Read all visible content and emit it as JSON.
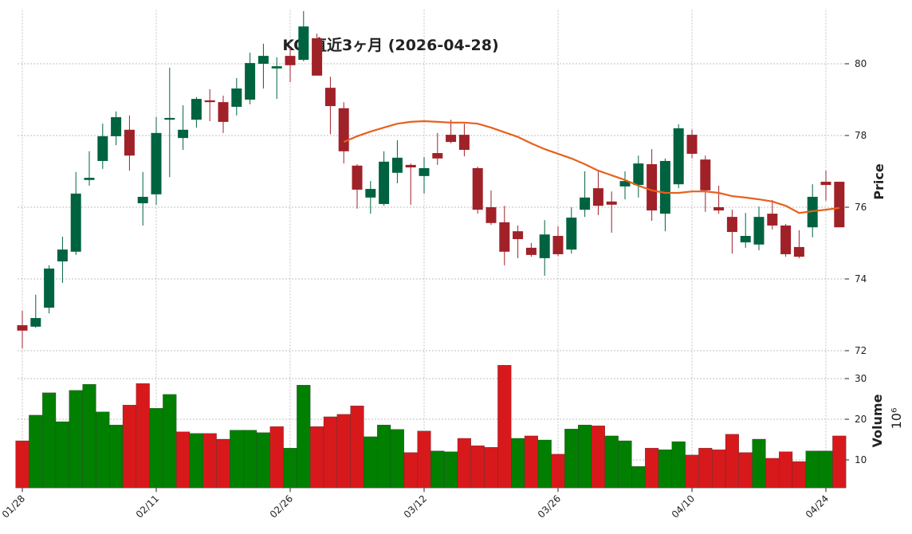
{
  "chart_data": {
    "type": "candlestick",
    "title": "KO 直近3ヶ月 (2026-04-28)",
    "ylabel": "Price",
    "y2label": "Volume",
    "y2_offset_label": "10⁶",
    "categories": [
      "01/28",
      null,
      null,
      null,
      null,
      null,
      null,
      null,
      null,
      null,
      "02/11",
      null,
      null,
      null,
      null,
      null,
      null,
      null,
      null,
      null,
      "02/26",
      null,
      null,
      null,
      null,
      null,
      null,
      null,
      null,
      null,
      "03/12",
      null,
      null,
      null,
      null,
      null,
      null,
      null,
      null,
      null,
      "03/26",
      null,
      null,
      null,
      null,
      null,
      null,
      null,
      null,
      null,
      "04/10",
      null,
      null,
      null,
      null,
      null,
      null,
      null,
      null,
      null,
      "04/24",
      null
    ],
    "open": [
      72.71,
      72.67,
      73.2,
      74.49,
      74.76,
      76.76,
      77.29,
      77.98,
      78.16,
      76.11,
      76.36,
      78.44,
      77.93,
      78.44,
      78.98,
      78.93,
      78.8,
      79.0,
      80.0,
      79.87,
      80.22,
      80.11,
      80.71,
      79.33,
      78.76,
      77.16,
      76.27,
      76.09,
      76.96,
      77.18,
      76.87,
      77.51,
      78.02,
      78.02,
      77.09,
      76.0,
      75.58,
      75.33,
      74.87,
      74.58,
      75.2,
      74.82,
      75.93,
      76.53,
      76.16,
      76.58,
      76.62,
      77.2,
      75.82,
      76.64,
      78.02,
      77.33,
      76.0,
      75.73,
      75.02,
      74.96,
      75.82,
      75.49,
      74.89,
      75.44,
      76.71,
      76.71
    ],
    "high": [
      73.11,
      73.56,
      74.38,
      75.18,
      76.98,
      77.56,
      78.33,
      78.67,
      78.56,
      76.98,
      78.51,
      79.89,
      78.84,
      79.07,
      79.29,
      79.11,
      79.6,
      80.31,
      80.56,
      80.18,
      80.44,
      81.47,
      80.84,
      79.64,
      78.93,
      77.2,
      76.73,
      77.56,
      77.87,
      77.22,
      77.4,
      78.07,
      78.44,
      78.33,
      77.13,
      76.47,
      76.04,
      75.49,
      75.0,
      75.64,
      75.47,
      76.0,
      77.0,
      77.02,
      76.44,
      77.0,
      77.44,
      77.62,
      77.36,
      78.31,
      78.16,
      77.44,
      76.6,
      75.93,
      75.84,
      76.02,
      76.2,
      75.53,
      75.36,
      76.64,
      77.02,
      76.71
    ],
    "low": [
      72.07,
      72.64,
      73.04,
      73.89,
      74.67,
      76.6,
      77.07,
      77.73,
      77.02,
      75.49,
      76.07,
      76.84,
      77.6,
      78.22,
      78.4,
      78.07,
      78.56,
      78.87,
      79.31,
      79.02,
      79.49,
      80.07,
      79.67,
      78.04,
      77.22,
      75.96,
      75.82,
      76.04,
      76.67,
      76.07,
      76.38,
      77.18,
      77.78,
      77.42,
      75.82,
      75.51,
      74.38,
      74.58,
      74.62,
      74.09,
      74.64,
      74.71,
      75.73,
      75.78,
      75.29,
      76.22,
      76.27,
      75.62,
      75.33,
      76.53,
      77.36,
      75.87,
      75.82,
      74.71,
      74.87,
      74.8,
      75.38,
      74.62,
      74.58,
      75.16,
      76.18,
      75.44
    ],
    "close": [
      72.56,
      72.91,
      74.29,
      74.82,
      76.38,
      76.82,
      77.98,
      78.51,
      77.44,
      76.29,
      78.07,
      78.49,
      78.16,
      79.02,
      78.93,
      78.38,
      79.31,
      80.02,
      80.22,
      79.93,
      79.96,
      81.04,
      79.67,
      78.82,
      77.56,
      76.49,
      76.51,
      77.27,
      77.38,
      77.11,
      77.09,
      77.36,
      77.82,
      77.6,
      75.93,
      75.56,
      74.76,
      75.11,
      74.67,
      75.24,
      74.69,
      75.71,
      76.27,
      76.04,
      76.07,
      76.73,
      77.22,
      75.91,
      77.29,
      78.2,
      77.49,
      76.47,
      75.91,
      75.31,
      75.2,
      75.73,
      75.49,
      74.69,
      74.62,
      76.29,
      76.62,
      75.44
    ],
    "ma": [
      null,
      null,
      null,
      null,
      null,
      null,
      null,
      null,
      null,
      null,
      null,
      null,
      null,
      null,
      null,
      null,
      null,
      null,
      null,
      null,
      null,
      null,
      null,
      null,
      77.82,
      77.98,
      78.11,
      78.22,
      78.33,
      78.38,
      78.4,
      78.38,
      78.36,
      78.36,
      78.33,
      78.22,
      78.09,
      77.96,
      77.78,
      77.62,
      77.49,
      77.36,
      77.2,
      77.02,
      76.89,
      76.76,
      76.6,
      76.47,
      76.4,
      76.4,
      76.44,
      76.44,
      76.4,
      76.31,
      76.27,
      76.22,
      76.16,
      76.04,
      75.84,
      75.89,
      75.93,
      75.98
    ],
    "volume": [
      14.7,
      21.0,
      26.5,
      19.4,
      27.1,
      28.6,
      21.8,
      18.6,
      23.5,
      28.8,
      22.7,
      26.1,
      16.9,
      16.5,
      16.5,
      15.1,
      17.3,
      17.3,
      16.7,
      18.2,
      12.9,
      28.4,
      18.2,
      20.6,
      21.2,
      23.3,
      15.7,
      18.6,
      17.5,
      11.8,
      17.1,
      12.2,
      12.0,
      15.3,
      13.5,
      13.1,
      33.3,
      15.3,
      15.9,
      14.9,
      11.4,
      17.6,
      18.6,
      18.4,
      15.9,
      14.7,
      8.4,
      12.9,
      12.5,
      14.5,
      11.2,
      12.9,
      12.5,
      16.3,
      11.8,
      15.1,
      10.4,
      12.0,
      9.6,
      12.2,
      12.2,
      15.9
    ],
    "ylim": [
      71.85,
      81.5
    ],
    "yticks": [
      72,
      74,
      76,
      78,
      80
    ],
    "y2lim": [
      3.1,
      33.9
    ],
    "y2ticks": [
      10,
      20,
      30
    ],
    "up_color": "#006340",
    "down_color": "#a02128",
    "volume_up_color": "#007f00",
    "volume_down_color": "#d7191c",
    "ma_color": "#e8601c",
    "grid": true
  }
}
